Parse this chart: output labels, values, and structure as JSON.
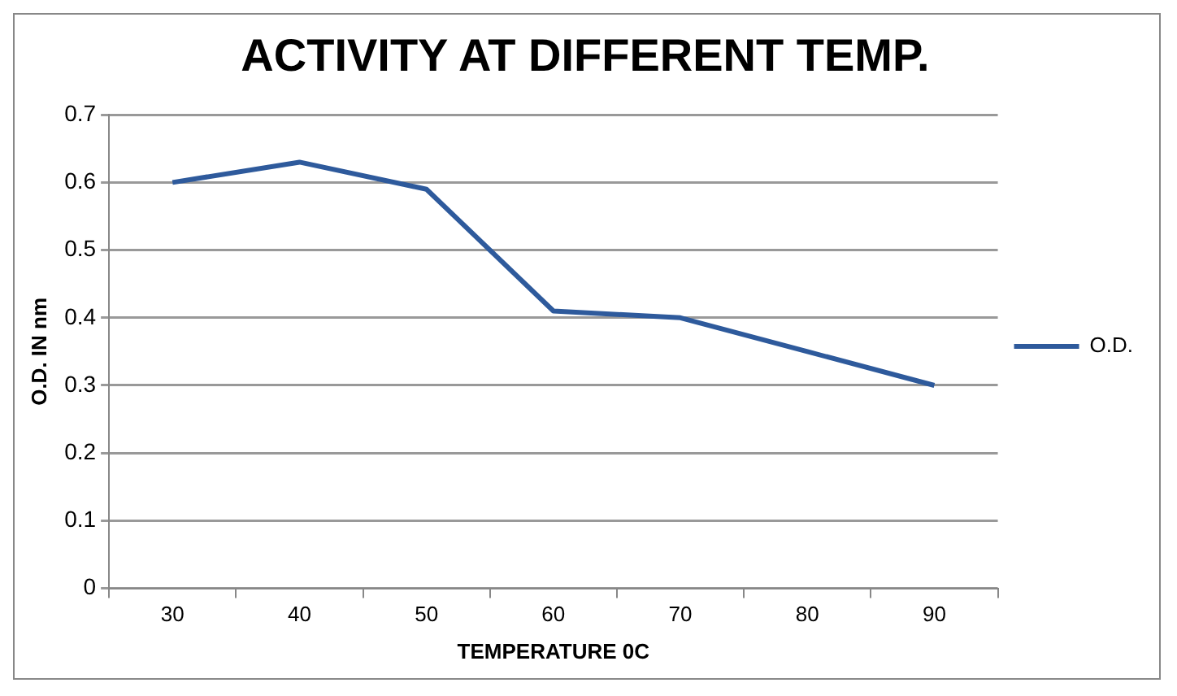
{
  "chart_data": {
    "type": "line",
    "title": "ACTIVITY AT DIFFERENT TEMP.",
    "xlabel": "TEMPERATURE 0C",
    "ylabel": "O.D. IN nm",
    "categories": [
      "30",
      "40",
      "50",
      "60",
      "70",
      "80",
      "90"
    ],
    "series": [
      {
        "name": "O.D.",
        "color": "#2e5a9c",
        "values": [
          0.6,
          0.63,
          0.59,
          0.41,
          0.4,
          0.35,
          0.3
        ]
      }
    ],
    "ylim": [
      0,
      0.7
    ],
    "yticks": [
      0,
      0.1,
      0.2,
      0.3,
      0.4,
      0.5,
      0.6,
      0.7
    ],
    "grid": "y",
    "legend": "right",
    "marker": "none",
    "line_style": "solid"
  }
}
